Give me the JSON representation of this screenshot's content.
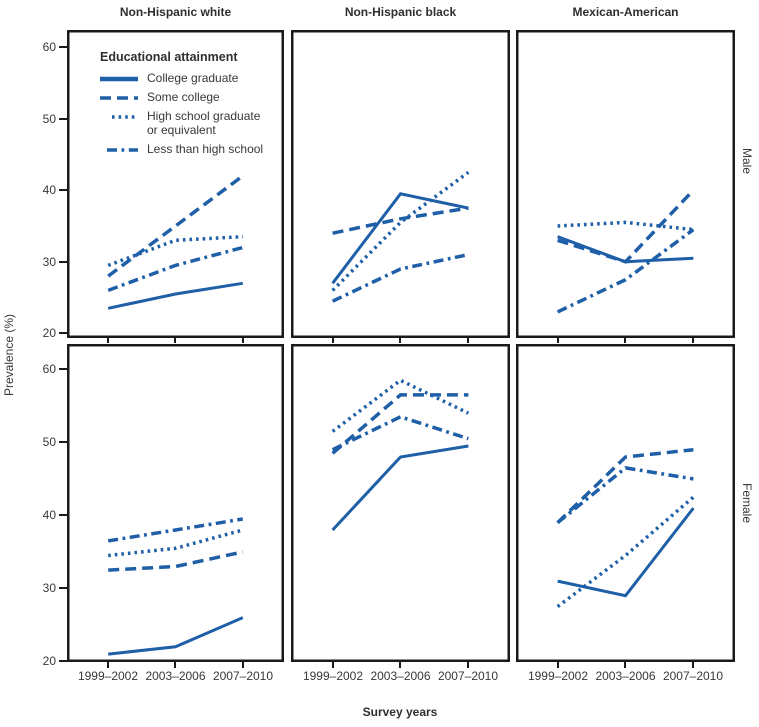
{
  "figure": {
    "y_axis_title": "Prevalence (%)",
    "x_axis_title": "Survey years"
  },
  "chart_data": {
    "type": "line",
    "layout": "2x3 small multiples, shared axes, legend top-left panel, grid off",
    "xlabel": "Survey years",
    "ylabel": "Prevalence (%)",
    "x_categories": [
      "1999–2002",
      "2003–2006",
      "2007–2010"
    ],
    "y_ticks": [
      60,
      50,
      40,
      30,
      20
    ],
    "ylim": [
      20,
      62.5
    ],
    "line_color": "#1f5fa8",
    "columns": [
      "Non-Hispanic white",
      "Non-Hispanic black",
      "Mexican-American"
    ],
    "rows": [
      "Male",
      "Female"
    ],
    "legend": {
      "title": "Educational attainment",
      "entries": [
        {
          "id": "college_graduate",
          "label": "College graduate",
          "style": "solid"
        },
        {
          "id": "some_college",
          "label": "Some college",
          "style": "dashed"
        },
        {
          "id": "hs_graduate",
          "label": "High school graduate",
          "label2": "or equivalent",
          "style": "dotted"
        },
        {
          "id": "less_than_hs",
          "label": "Less than high school",
          "style": "dashdot"
        }
      ]
    },
    "panels": [
      {
        "row": "Male",
        "column": "Non-Hispanic white",
        "series": {
          "college_graduate": [
            23.5,
            25.5,
            27
          ],
          "some_college": [
            28,
            35,
            42
          ],
          "hs_graduate": [
            29.5,
            33,
            33.5
          ],
          "less_than_hs": [
            26,
            29.5,
            32
          ]
        }
      },
      {
        "row": "Male",
        "column": "Non-Hispanic black",
        "series": {
          "college_graduate": [
            27,
            39.5,
            37.5
          ],
          "some_college": [
            34,
            36,
            37.5
          ],
          "hs_graduate": [
            26,
            35.5,
            42.5
          ],
          "less_than_hs": [
            24.5,
            29,
            31
          ]
        }
      },
      {
        "row": "Male",
        "column": "Mexican-American",
        "series": {
          "college_graduate": [
            33.5,
            30,
            30.5
          ],
          "some_college": [
            33,
            30,
            40
          ],
          "hs_graduate": [
            35,
            35.5,
            34.5
          ],
          "less_than_hs": [
            23,
            27.5,
            34.5
          ]
        }
      },
      {
        "row": "Female",
        "column": "Non-Hispanic white",
        "series": {
          "college_graduate": [
            21,
            22,
            26
          ],
          "some_college": [
            32.5,
            33,
            35
          ],
          "hs_graduate": [
            34.5,
            35.5,
            38
          ],
          "less_than_hs": [
            36.5,
            38,
            39.5
          ]
        }
      },
      {
        "row": "Female",
        "column": "Non-Hispanic black",
        "series": {
          "college_graduate": [
            38,
            48,
            49.5
          ],
          "some_college": [
            48.5,
            56.5,
            56.5
          ],
          "hs_graduate": [
            51.5,
            58.5,
            54
          ],
          "less_than_hs": [
            49,
            53.5,
            50.5
          ]
        }
      },
      {
        "row": "Female",
        "column": "Mexican-American",
        "series": {
          "college_graduate": [
            31,
            29,
            41
          ],
          "some_college": [
            39,
            48,
            49
          ],
          "hs_graduate": [
            27.5,
            34.5,
            42.5
          ],
          "less_than_hs": [
            39,
            46.5,
            45
          ]
        }
      }
    ]
  }
}
